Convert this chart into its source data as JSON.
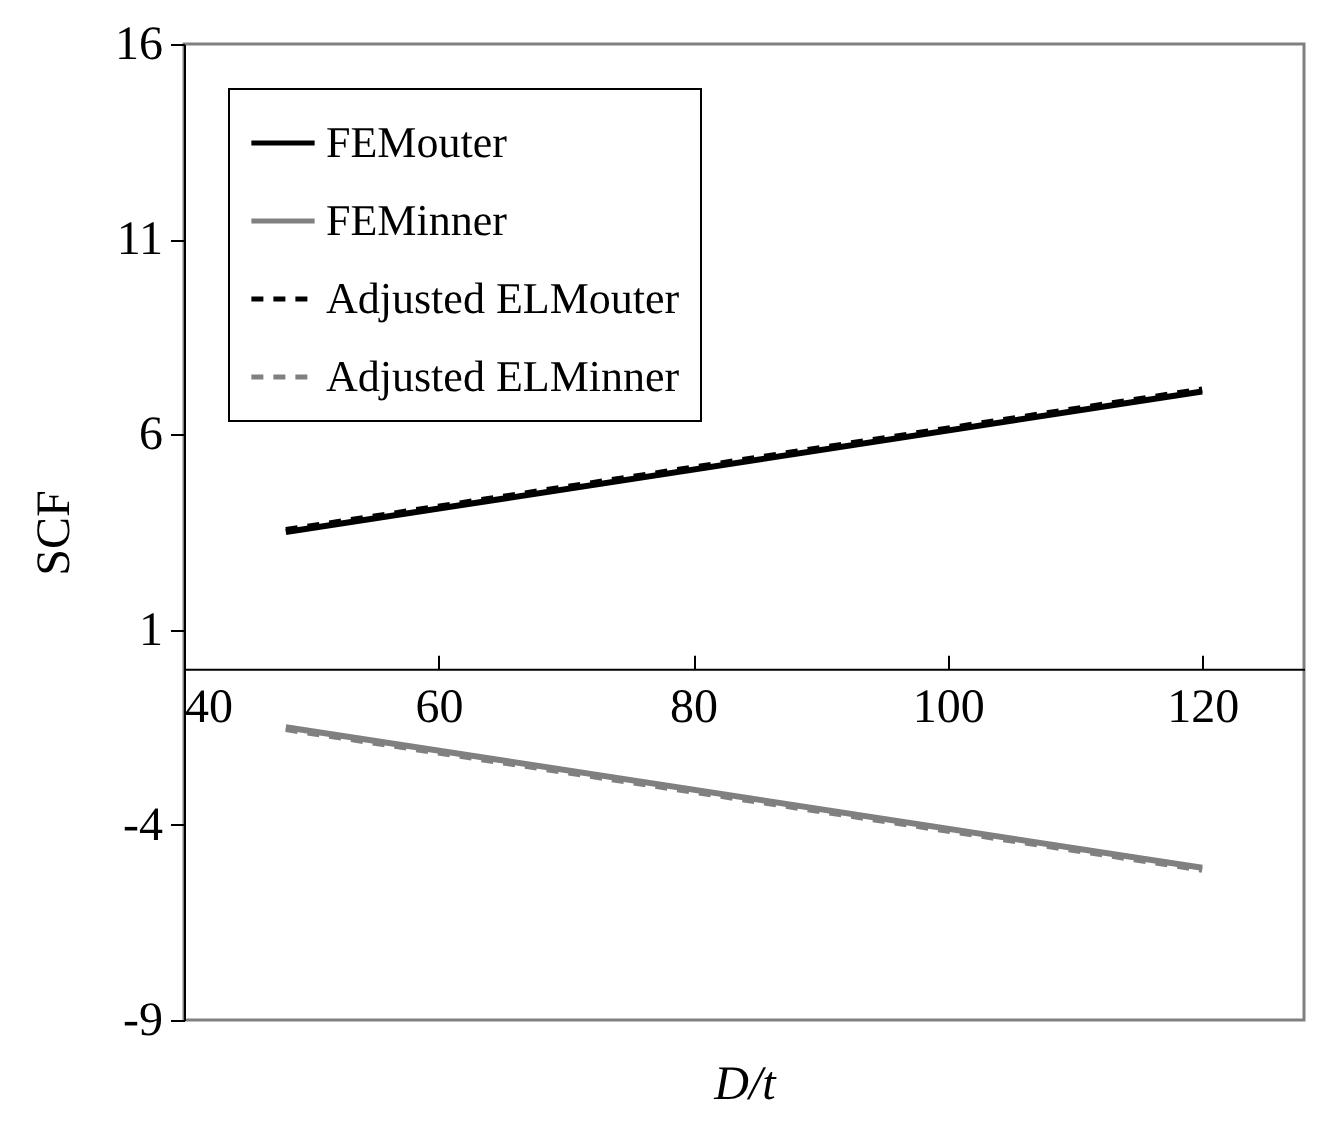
{
  "chart_data": {
    "type": "line",
    "xlabel": "D/t",
    "ylabel": "SCF",
    "xlim": [
      40,
      128
    ],
    "xticks": [
      40,
      60,
      80,
      100,
      120
    ],
    "ylim": [
      -9,
      16
    ],
    "yticks": [
      -9,
      -4,
      1,
      6,
      11,
      16
    ],
    "legend": "top left",
    "x": [
      48,
      120
    ],
    "series": [
      {
        "name": "FEMouter",
        "color": "#000000",
        "line_style": "solid",
        "values": [
          3.5,
          7.1
        ]
      },
      {
        "name": "FEMinner",
        "color": "#808080",
        "line_style": "solid",
        "values": [
          -1.5,
          -5.1
        ]
      },
      {
        "name": "Adjusted ELMouter",
        "color": "#000000",
        "line_style": "dashed",
        "values": [
          3.55,
          7.15
        ]
      },
      {
        "name": "Adjusted ELMinner",
        "color": "#808080",
        "line_style": "dashed",
        "values": [
          -1.55,
          -5.15
        ]
      }
    ]
  }
}
